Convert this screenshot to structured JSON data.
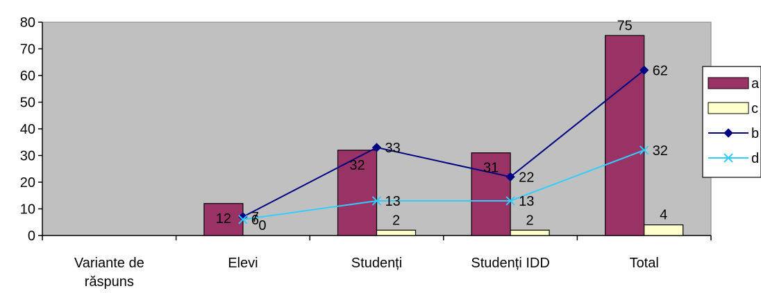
{
  "chart_data": {
    "type": "bar",
    "categories": [
      [
        "Variante de",
        "răspuns"
      ],
      [
        "Elevi"
      ],
      [
        "Studenți"
      ],
      [
        "Studenți IDD"
      ],
      [
        "Total"
      ]
    ],
    "ylim": [
      0,
      80
    ],
    "yticks": [
      "0",
      "10",
      "20",
      "30",
      "40",
      "50",
      "60",
      "70",
      "80"
    ],
    "grid": false,
    "legend_position": "right",
    "series": [
      {
        "name": "a",
        "kind": "bar",
        "color": "#993366",
        "values": [
          null,
          12,
          32,
          31,
          75
        ]
      },
      {
        "name": "c",
        "kind": "bar",
        "color": "#FFFFCC",
        "values": [
          null,
          0,
          2,
          2,
          4
        ]
      },
      {
        "name": "b",
        "kind": "line",
        "color": "#000080",
        "marker": "diamond",
        "values": [
          null,
          7,
          33,
          22,
          62
        ]
      },
      {
        "name": "d",
        "kind": "line",
        "color": "#33CCFF",
        "marker": "x",
        "values": [
          null,
          6,
          13,
          13,
          32
        ]
      }
    ],
    "plot_background": "#C0C0C0"
  }
}
